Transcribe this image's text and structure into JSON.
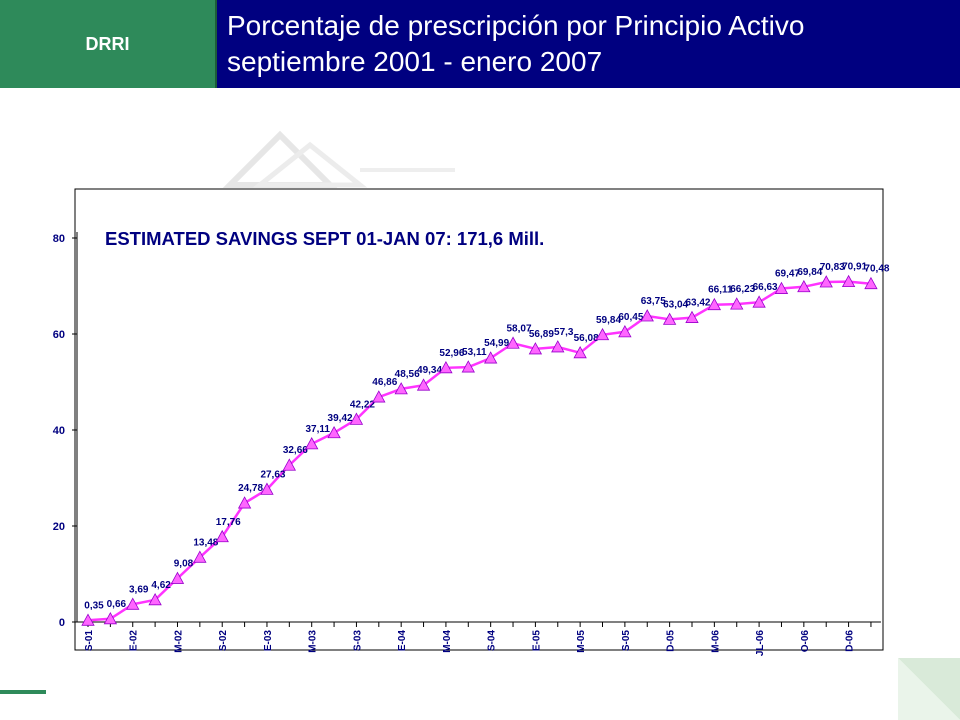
{
  "header": {
    "logo_text": "DRRI",
    "title_line1": "Porcentaje de prescripción por Principio Activo",
    "title_line2": "septiembre 2001 - enero 2007"
  },
  "colors": {
    "header_green": "#2e8a5a",
    "header_navy": "#000080",
    "line": "#ff33ff",
    "marker_fill": "#ff66ff",
    "label": "#000080"
  },
  "chart_data": {
    "type": "line",
    "title": "ESTIMATED SAVINGS SEPT 01-JAN 07: 171,6 Mill.",
    "xlabel": "",
    "ylabel": "",
    "ylim": [
      0,
      80
    ],
    "yticks": [
      0,
      20,
      40,
      60,
      80
    ],
    "grid": false,
    "x_tick_labels": [
      {
        "index": 0,
        "label": "S-01"
      },
      {
        "index": 2,
        "label": "E-02"
      },
      {
        "index": 4,
        "label": "M-02"
      },
      {
        "index": 6,
        "label": "S-02"
      },
      {
        "index": 8,
        "label": "E-03"
      },
      {
        "index": 10,
        "label": "M-03"
      },
      {
        "index": 12,
        "label": "S-03"
      },
      {
        "index": 14,
        "label": "E-04"
      },
      {
        "index": 16,
        "label": "M-04"
      },
      {
        "index": 18,
        "label": "S-04"
      },
      {
        "index": 20,
        "label": "E-05"
      },
      {
        "index": 22,
        "label": "M-05"
      },
      {
        "index": 24,
        "label": "S-05"
      },
      {
        "index": 26,
        "label": "D-05"
      },
      {
        "index": 28,
        "label": "M-06"
      },
      {
        "index": 30,
        "label": "JL-06"
      },
      {
        "index": 32,
        "label": "O-06"
      },
      {
        "index": 34,
        "label": "D-06"
      }
    ],
    "values": [
      0.35,
      0.66,
      3.69,
      4.62,
      9.08,
      13.48,
      17.76,
      24.78,
      27.63,
      32.66,
      37.11,
      39.42,
      42.22,
      46.86,
      48.56,
      49.34,
      52.96,
      53.11,
      54.99,
      58.07,
      56.89,
      57.3,
      56.08,
      59.84,
      60.45,
      63.75,
      63.04,
      63.42,
      66.11,
      66.23,
      66.63,
      69.47,
      69.84,
      70.83,
      70.91,
      70.48
    ],
    "data_labels": [
      "0,35",
      "0,66",
      "3,69",
      "4,62",
      "9,08",
      "13,48",
      "17,76",
      "24,78",
      "27,63",
      "32,66",
      "37,11",
      "39,42",
      "42,22",
      "46,86",
      "48,56",
      "49,34",
      "52,96",
      "53,11",
      "54,99",
      "58,07",
      "56,89",
      "57,3",
      "56,08",
      "59,84",
      "60,45",
      "63,75",
      "63,04",
      "63,42",
      "66,11",
      "66,23",
      "66,63",
      "69,47",
      "69,84",
      "70,83",
      "70,91",
      "70,48"
    ]
  }
}
